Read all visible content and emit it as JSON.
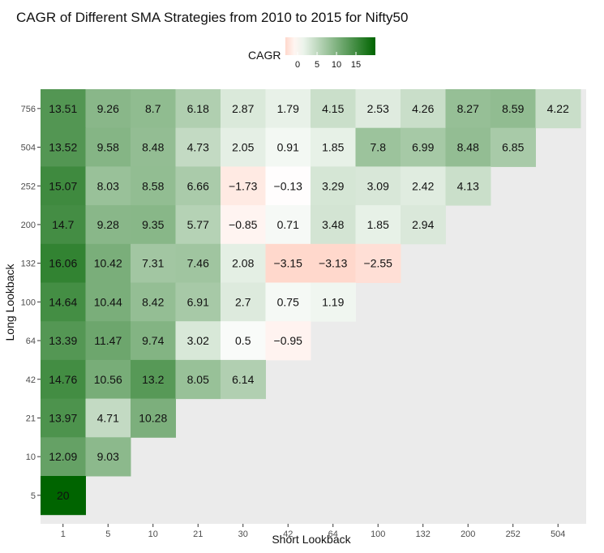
{
  "chart_data": {
    "type": "heatmap",
    "title": "CAGR of Different SMA Strategies from 2010 to 2015 for Nifty50",
    "xlabel": "Short Lookback",
    "ylabel": "Long Lookback",
    "x_categories": [
      "1",
      "5",
      "10",
      "21",
      "30",
      "42",
      "64",
      "100",
      "132",
      "200",
      "252",
      "504"
    ],
    "y_categories": [
      "756",
      "504",
      "252",
      "200",
      "132",
      "100",
      "64",
      "42",
      "21",
      "10",
      "5"
    ],
    "values": [
      [
        13.51,
        9.26,
        8.7,
        6.18,
        2.87,
        1.79,
        4.15,
        2.53,
        4.26,
        8.27,
        8.59,
        4.22
      ],
      [
        13.52,
        9.58,
        8.48,
        4.73,
        2.05,
        0.91,
        1.85,
        7.8,
        6.99,
        8.48,
        6.85,
        null
      ],
      [
        15.07,
        8.03,
        8.58,
        6.66,
        -1.73,
        -0.13,
        3.29,
        3.09,
        2.42,
        4.13,
        null,
        null
      ],
      [
        14.7,
        9.28,
        9.35,
        5.77,
        -0.85,
        0.71,
        3.48,
        1.85,
        2.94,
        null,
        null,
        null
      ],
      [
        16.06,
        10.42,
        7.31,
        7.46,
        2.08,
        -3.15,
        -3.13,
        -2.55,
        null,
        null,
        null,
        null
      ],
      [
        14.64,
        10.44,
        8.42,
        6.91,
        2.7,
        0.75,
        1.19,
        null,
        null,
        null,
        null,
        null
      ],
      [
        13.39,
        11.47,
        9.74,
        3.02,
        0.5,
        -0.95,
        null,
        null,
        null,
        null,
        null,
        null
      ],
      [
        14.76,
        10.56,
        13.2,
        8.05,
        6.14,
        null,
        null,
        null,
        null,
        null,
        null,
        null
      ],
      [
        13.97,
        4.71,
        10.28,
        null,
        null,
        null,
        null,
        null,
        null,
        null,
        null,
        null
      ],
      [
        12.09,
        9.03,
        null,
        null,
        null,
        null,
        null,
        null,
        null,
        null,
        null,
        null
      ],
      [
        20,
        null,
        null,
        null,
        null,
        null,
        null,
        null,
        null,
        null,
        null,
        null
      ]
    ],
    "legend": {
      "title": "CAGR",
      "position": "top",
      "ticks": [
        0,
        5,
        10,
        15
      ],
      "range": [
        -3.15,
        20
      ]
    },
    "colors": {
      "low": "#ffd8cc",
      "mid": "#ffffff",
      "high": "#006400",
      "midpoint": 0,
      "panel_background": "#ebebeb"
    }
  }
}
